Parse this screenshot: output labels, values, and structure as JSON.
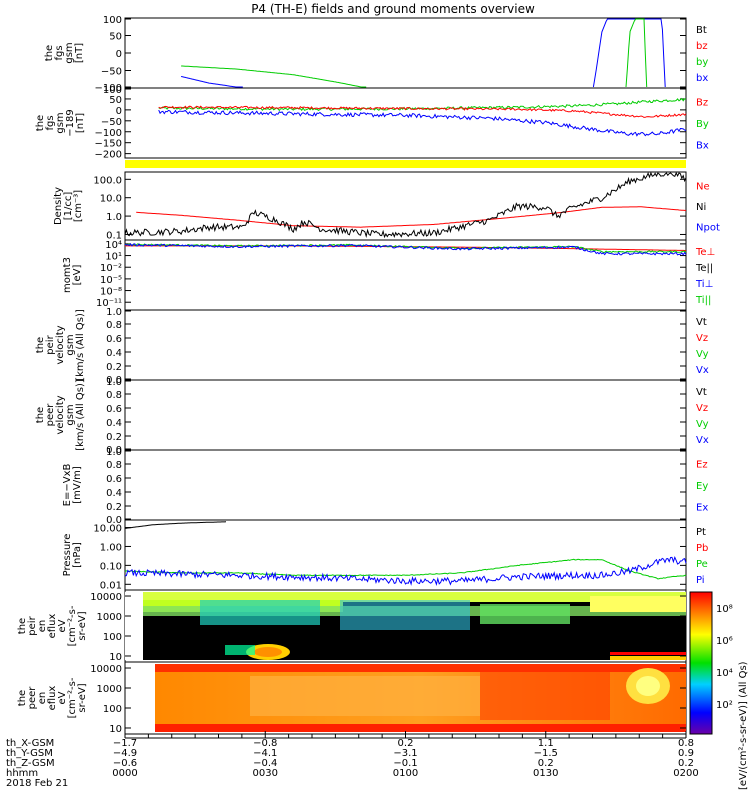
{
  "title": "P4 (TH-E) fields and ground moments overview",
  "chart_data": [
    {
      "id": "fgs",
      "type": "line",
      "ylabel": [
        "the",
        "fgs",
        "gsm",
        "[nT]"
      ],
      "ylim": [
        -100,
        100
      ],
      "yticks": [
        100,
        50,
        0,
        -50,
        -100
      ],
      "tick_labels": [
        "100",
        "50",
        "0",
        "−50",
        "−100"
      ],
      "legend": [
        {
          "label": "Bt",
          "color": "#000000"
        },
        {
          "label": "bz",
          "color": "#ff0000"
        },
        {
          "label": "by",
          "color": "#00cc00"
        },
        {
          "label": "bx",
          "color": "#0000ff"
        }
      ],
      "series": [
        {
          "name": "by",
          "color": "#00cc00",
          "x": [
            0.1,
            0.2,
            0.3,
            0.38,
            0.43
          ],
          "y": [
            -37,
            -46,
            -62,
            -84,
            -100
          ]
        },
        {
          "name": "bx",
          "color": "#0000ff",
          "x": [
            0.1,
            0.15,
            0.21
          ],
          "y": [
            -67,
            -86,
            -100
          ]
        },
        {
          "name": "bx-spike",
          "color": "#0000ff",
          "x": [
            0.835,
            0.85,
            0.86,
            0.957,
            0.963
          ],
          "y": [
            -100,
            60,
            100,
            100,
            -100
          ]
        },
        {
          "name": "by-spike",
          "color": "#00cc00",
          "x": [
            0.893,
            0.9,
            0.91,
            0.925,
            0.93
          ],
          "y": [
            -100,
            60,
            100,
            100,
            -100
          ]
        }
      ]
    },
    {
      "id": "fgs-189",
      "type": "line",
      "ylabel": [
        "the",
        "fgs",
        "gsm",
        "−189",
        "[nT]"
      ],
      "ylim": [
        -220,
        100
      ],
      "yticks": [
        100,
        50,
        0,
        -50,
        -100,
        -150,
        -200
      ],
      "tick_labels": [
        "100",
        "50",
        "0",
        "−50",
        "−100",
        "−150",
        "−200"
      ],
      "legend": [
        {
          "label": "Bz",
          "color": "#ff0000"
        },
        {
          "label": "By",
          "color": "#00cc00"
        },
        {
          "label": "Bx",
          "color": "#0000ff"
        }
      ],
      "series": [
        {
          "name": "By",
          "color": "#00cc00",
          "noise": 6,
          "x": [
            0.06,
            0.3,
            0.5,
            0.7,
            0.8,
            0.88,
            0.93,
            1.0
          ],
          "y": [
            8,
            3,
            5,
            12,
            18,
            28,
            38,
            48
          ]
        },
        {
          "name": "Bz",
          "color": "#ff0000",
          "noise": 5,
          "x": [
            0.06,
            0.3,
            0.5,
            0.7,
            0.8,
            0.88,
            0.93,
            1.0
          ],
          "y": [
            13,
            10,
            6,
            3,
            -5,
            -22,
            -32,
            -20
          ]
        },
        {
          "name": "Bx",
          "color": "#0000ff",
          "noise": 9,
          "x": [
            0.06,
            0.3,
            0.5,
            0.65,
            0.75,
            0.85,
            0.9,
            0.95,
            1.0
          ],
          "y": [
            -8,
            -18,
            -25,
            -38,
            -58,
            -95,
            -110,
            -110,
            -88
          ]
        }
      ]
    },
    {
      "id": "flag-bar",
      "type": "bar",
      "color": "#ffff00",
      "x_range": [
        0,
        1
      ]
    },
    {
      "id": "density",
      "type": "line",
      "ylabel": [
        "Density",
        "[1/cc]",
        "[cm⁻³]"
      ],
      "yscale": "log",
      "ylim": [
        0.05,
        250
      ],
      "yticks": [
        100,
        10,
        1,
        0.1
      ],
      "tick_labels": [
        "100.0",
        "10.0",
        "1.0",
        "0.1"
      ],
      "legend": [
        {
          "label": "Ne",
          "color": "#ff0000"
        },
        {
          "label": "Ni",
          "color": "#000000"
        },
        {
          "label": "Npot",
          "color": "#0000ff"
        }
      ],
      "series": [
        {
          "name": "Ne",
          "color": "#ff0000",
          "noise": 0,
          "x": [
            0.02,
            0.1,
            0.2,
            0.3,
            0.42,
            0.55,
            0.68,
            0.78,
            0.85,
            0.92,
            1.0
          ],
          "y": [
            1.6,
            1.1,
            0.6,
            0.3,
            0.25,
            0.35,
            0.8,
            1.6,
            3.0,
            3.2,
            2.0
          ]
        },
        {
          "name": "Ni",
          "color": "#000000",
          "noise": 0.18,
          "x": [
            0.0,
            0.1,
            0.15,
            0.21,
            0.23,
            0.27,
            0.3,
            0.32,
            0.35,
            0.45,
            0.55,
            0.65,
            0.7,
            0.75,
            0.77,
            0.8,
            0.85,
            0.9,
            0.95,
            0.98,
            1.0
          ],
          "y": [
            0.12,
            0.15,
            0.25,
            0.25,
            1.6,
            0.6,
            0.2,
            0.5,
            0.2,
            0.1,
            0.12,
            0.6,
            3.5,
            3.0,
            1.0,
            3.0,
            10,
            80,
            200,
            220,
            100
          ]
        }
      ]
    },
    {
      "id": "mom-t3",
      "type": "line",
      "ylabel": [
        "momt3",
        "[eV]"
      ],
      "yscale": "log",
      "ylim": [
        1e-13,
        100000.0
      ],
      "yticks": [
        10000.0,
        10,
        0.01,
        1e-05,
        1e-08,
        1e-11
      ],
      "tick_labels": [
        "10⁴",
        "10¹",
        "10⁻²",
        "10⁻⁵",
        "10⁻⁸",
        "10⁻¹¹"
      ],
      "legend": [
        {
          "label": "Te⊥",
          "color": "#ff0000"
        },
        {
          "label": "Te||",
          "color": "#000000"
        },
        {
          "label": "Ti⊥",
          "color": "#0000ff"
        },
        {
          "label": "Ti||",
          "color": "#00cc00"
        }
      ],
      "series": [
        {
          "name": "Te⊥",
          "color": "#ff0000",
          "noise": 0,
          "x": [
            0.0,
            0.3,
            0.6,
            0.8,
            1.0
          ],
          "y": [
            3000,
            3000,
            1500,
            600,
            200
          ]
        },
        {
          "name": "Ti||",
          "color": "#00cc00",
          "noise": 0.2,
          "x": [
            0.0,
            0.2,
            0.4,
            0.6,
            0.8,
            0.85,
            1.0
          ],
          "y": [
            8000,
            3000,
            5000,
            800,
            2000,
            100,
            100
          ]
        },
        {
          "name": "Ti⊥",
          "color": "#0000ff",
          "noise": 0.3,
          "x": [
            0.0,
            0.2,
            0.4,
            0.6,
            0.8,
            0.85,
            1.0
          ],
          "y": [
            6000,
            2000,
            4000,
            500,
            1500,
            30,
            30
          ]
        }
      ]
    },
    {
      "id": "peir-velocity",
      "type": "line",
      "ylabel": [
        "the",
        "peir",
        "velocity",
        "gsm",
        "[km/s (All Qs)]"
      ],
      "ylim": [
        0,
        1
      ],
      "yticks": [
        1.0,
        0.8,
        0.6,
        0.4,
        0.2,
        0.0
      ],
      "tick_labels": [
        "1.0",
        "0.8",
        "0.6",
        "0.4",
        "0.2",
        "0.0"
      ],
      "legend": [
        {
          "label": "Vt",
          "color": "#000000"
        },
        {
          "label": "Vz",
          "color": "#ff0000"
        },
        {
          "label": "Vy",
          "color": "#00cc00"
        },
        {
          "label": "Vx",
          "color": "#0000ff"
        }
      ],
      "series": []
    },
    {
      "id": "peer-velocity",
      "type": "line",
      "ylabel": [
        "the",
        "peer",
        "velocity",
        "gsm",
        "[km/s (All Qs)]"
      ],
      "ylim": [
        0,
        1
      ],
      "yticks": [
        1.0,
        0.8,
        0.6,
        0.4,
        0.2,
        0.0
      ],
      "tick_labels": [
        "1.0",
        "0.8",
        "0.6",
        "0.4",
        "0.2",
        "0.0"
      ],
      "legend": [
        {
          "label": "Vt",
          "color": "#000000"
        },
        {
          "label": "Vz",
          "color": "#ff0000"
        },
        {
          "label": "Vy",
          "color": "#00cc00"
        },
        {
          "label": "Vx",
          "color": "#0000ff"
        }
      ],
      "series": []
    },
    {
      "id": "e-field",
      "type": "line",
      "ylabel": [
        "E=−VxB",
        "[mV/m]"
      ],
      "ylim": [
        0,
        1
      ],
      "yticks": [
        1.0,
        0.8,
        0.6,
        0.4,
        0.2,
        0.0
      ],
      "tick_labels": [
        "1.0",
        "0.8",
        "0.6",
        "0.4",
        "0.2",
        "0.0"
      ],
      "legend": [
        {
          "label": "Ez",
          "color": "#ff0000"
        },
        {
          "label": "Ey",
          "color": "#00cc00"
        },
        {
          "label": "Ex",
          "color": "#0000ff"
        }
      ],
      "series": []
    },
    {
      "id": "pressure",
      "type": "line",
      "ylabel": [
        "Pressure",
        "[nPa]"
      ],
      "yscale": "log",
      "ylim": [
        0.005,
        25
      ],
      "yticks": [
        10,
        1,
        0.1,
        0.01
      ],
      "tick_labels": [
        "10.00",
        "1.00",
        "0.10",
        "0.01"
      ],
      "legend": [
        {
          "label": "Pt",
          "color": "#000000"
        },
        {
          "label": "Pb",
          "color": "#ff0000"
        },
        {
          "label": "Pe",
          "color": "#00cc00"
        },
        {
          "label": "Pi",
          "color": "#0000ff"
        }
      ],
      "series": [
        {
          "name": "Pt",
          "color": "#000000",
          "noise": 0,
          "x": [
            0.0,
            0.05,
            0.1,
            0.15,
            0.18
          ],
          "y": [
            9,
            14,
            17,
            19,
            20
          ]
        },
        {
          "name": "Pe",
          "color": "#00cc00",
          "noise": 0.02,
          "x": [
            0.0,
            0.1,
            0.2,
            0.3,
            0.4,
            0.5,
            0.6,
            0.7,
            0.8,
            0.85,
            0.9,
            0.95,
            1.0
          ],
          "y": [
            0.05,
            0.04,
            0.04,
            0.03,
            0.03,
            0.03,
            0.04,
            0.1,
            0.2,
            0.2,
            0.05,
            0.02,
            0.03
          ]
        },
        {
          "name": "Pi",
          "color": "#0000ff",
          "noise": 0.18,
          "x": [
            0.0,
            0.1,
            0.2,
            0.3,
            0.4,
            0.5,
            0.6,
            0.7,
            0.8,
            0.85,
            0.9,
            0.95,
            0.97,
            1.0
          ],
          "y": [
            0.04,
            0.035,
            0.03,
            0.025,
            0.02,
            0.015,
            0.015,
            0.025,
            0.03,
            0.03,
            0.05,
            0.15,
            0.2,
            0.15
          ]
        }
      ]
    },
    {
      "id": "peir-spectrogram",
      "type": "heatmap",
      "ylabel": [
        "the",
        "peir",
        "en",
        "eflux",
        "eV",
        "[cm⁻²-s-",
        "sr-eV]"
      ],
      "yscale": "log",
      "ylim": [
        5,
        20000
      ],
      "yticks": [
        10000,
        1000,
        100,
        10
      ],
      "tick_labels": [
        "10000",
        "1000",
        "100",
        "10"
      ]
    },
    {
      "id": "peer-spectrogram",
      "type": "heatmap",
      "ylabel": [
        "the",
        "peer",
        "en",
        "eflux",
        "eV",
        "[cm⁻²-s-",
        "sr-eV]"
      ],
      "yscale": "log",
      "ylim": [
        5,
        20000
      ],
      "yticks": [
        10000,
        1000,
        100,
        10
      ],
      "tick_labels": [
        "10000",
        "1000",
        "100",
        "10"
      ]
    }
  ],
  "colorbar": {
    "label": "[eV/(cm²-s-sr-eV)] (All Qs)",
    "tick_labels": [
      "10⁸",
      "10⁶",
      "10⁴",
      "10²"
    ]
  },
  "x_axis": {
    "row_labels": [
      "th_X-GSM",
      "th_Y-GSM",
      "th_Z-GSM",
      "hhmm",
      "2018 Feb 21"
    ],
    "ticks": [
      {
        "pos": 0.0,
        "vals": [
          "−1.7",
          "−4.9",
          "−0.6",
          "0000"
        ]
      },
      {
        "pos": 0.25,
        "vals": [
          "−0.8",
          "−4.1",
          "−0.4",
          "0030"
        ]
      },
      {
        "pos": 0.5,
        "vals": [
          "0.2",
          "−3.1",
          "−0.1",
          "0100"
        ]
      },
      {
        "pos": 0.75,
        "vals": [
          "1.1",
          "−1.5",
          "0.2",
          "0130"
        ]
      },
      {
        "pos": 1.0,
        "vals": [
          "0.8",
          "0.9",
          "0.2",
          "0200"
        ]
      }
    ]
  }
}
